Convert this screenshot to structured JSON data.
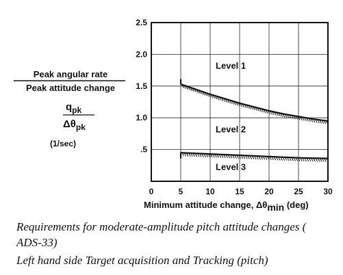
{
  "chart_data": {
    "type": "line",
    "ylabel": {
      "numerator": "Peak angular rate",
      "denominator": "Peak attitude change",
      "symbol_num_base": "q",
      "symbol_num_sub": "pk",
      "symbol_den_base": "Δθ",
      "symbol_den_sub": "pk",
      "units": "(1/sec)"
    },
    "xlabel": {
      "text": "Minimum attitude change, Δθ",
      "subscript": "min",
      "units": "(deg)"
    },
    "xlim": [
      0,
      30
    ],
    "ylim": [
      0,
      2.5
    ],
    "x_ticks": [
      {
        "v": 0,
        "label": "0"
      },
      {
        "v": 5,
        "label": "5"
      },
      {
        "v": 10,
        "label": "10"
      },
      {
        "v": 15,
        "label": "15"
      },
      {
        "v": 20,
        "label": "20"
      },
      {
        "v": 25,
        "label": "25"
      },
      {
        "v": 30,
        "label": "30"
      }
    ],
    "y_ticks": [
      {
        "v": 0.5,
        "label": ".5"
      },
      {
        "v": 1.0,
        "label": "1.0"
      },
      {
        "v": 1.5,
        "label": "1.5"
      },
      {
        "v": 2.0,
        "label": "2.0"
      },
      {
        "v": 2.5,
        "label": "2.5"
      }
    ],
    "grid": true,
    "series": [
      {
        "x": [
          5,
          7.5,
          10,
          12.5,
          15,
          17.5,
          20,
          22.5,
          25,
          27.5,
          30
        ],
        "y": [
          1.53,
          1.45,
          1.37,
          1.3,
          1.23,
          1.17,
          1.11,
          1.06,
          1.02,
          0.98,
          0.95
        ],
        "vertical_start": 1.61
      },
      {
        "x": [
          5,
          10,
          15,
          20,
          25,
          30
        ],
        "y": [
          0.45,
          0.43,
          0.41,
          0.39,
          0.37,
          0.36
        ],
        "vertical_start": 0.36
      }
    ],
    "region_labels": [
      {
        "text": "Level 1",
        "x": 13.5,
        "y": 1.77
      },
      {
        "text": "Level 2",
        "x": 13.5,
        "y": 0.77
      },
      {
        "text": "Level 3",
        "x": 13.5,
        "y": 0.18
      }
    ]
  },
  "caption": {
    "line1": "Requirements for moderate-amplitude pitch  attitude changes (",
    "line2": "ADS-33)",
    "line3": "Left hand side Target acquisition and Tracking (pitch)"
  }
}
